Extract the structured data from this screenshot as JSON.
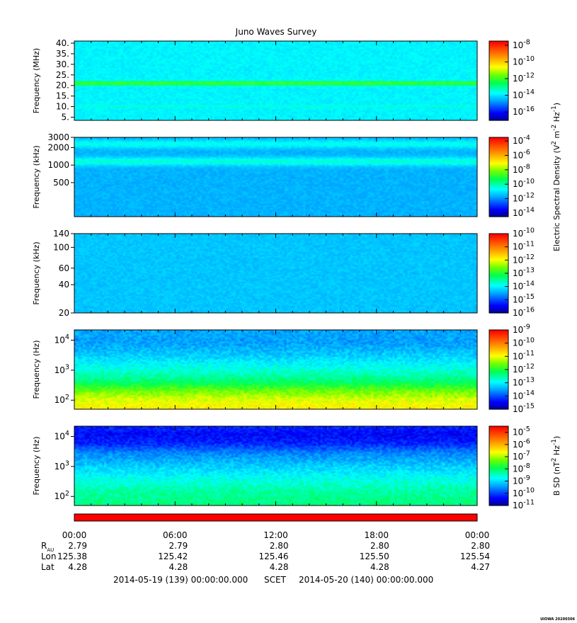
{
  "chart_data": {
    "type": "heatmap",
    "title": "Juno Waves Survey",
    "panels": [
      {
        "ylabel": "Frequency (MHz)",
        "yscale": "linear",
        "ylim": [
          3.5,
          41
        ],
        "yticks": [
          {
            "v": 5,
            "label": "5."
          },
          {
            "v": 10,
            "label": "10."
          },
          {
            "v": 15,
            "label": "15."
          },
          {
            "v": 20,
            "label": "20."
          },
          {
            "v": 25,
            "label": "25."
          },
          {
            "v": 30,
            "label": "30."
          },
          {
            "v": 35,
            "label": "35."
          },
          {
            "v": 40,
            "label": "40."
          }
        ],
        "colorbar": {
          "min_exp": -17,
          "max_exp": -7.5,
          "ticks": [
            -8,
            -10,
            -12,
            -14,
            -16
          ]
        },
        "background_level": 0.34,
        "bands": [
          {
            "center": 21,
            "width": 0.7,
            "level": 0.55
          },
          {
            "center": 10,
            "width": 0.4,
            "level": 0.38
          }
        ]
      },
      {
        "ylabel": "Frequency (kHz)",
        "yscale": "log",
        "ylim": [
          130,
          3000
        ],
        "yticks": [
          {
            "v": 500,
            "label": "500"
          },
          {
            "v": 1000,
            "label": "1000"
          },
          {
            "v": 2000,
            "label": "2000"
          },
          {
            "v": 3000,
            "label": "3000"
          }
        ],
        "colorbar": {
          "min_exp": -14.5,
          "max_exp": -3.5,
          "ticks": [
            -4,
            -6,
            -8,
            -10,
            -12,
            -14
          ]
        },
        "background_level": 0.27,
        "bands": [
          {
            "center": 1150,
            "width": 0.05,
            "level": 0.38
          },
          {
            "center": 2300,
            "width": 0.05,
            "level": 0.36
          }
        ]
      },
      {
        "ylabel": "Frequency (kHz)",
        "yscale": "log",
        "ylim": [
          20,
          140
        ],
        "yticks": [
          {
            "v": 20,
            "label": "20"
          },
          {
            "v": 40,
            "label": "40"
          },
          {
            "v": 60,
            "label": "60"
          },
          {
            "v": 100,
            "label": "100"
          },
          {
            "v": 140,
            "label": "140"
          }
        ],
        "colorbar": {
          "min_exp": -16,
          "max_exp": -10,
          "ticks": [
            -10,
            -11,
            -12,
            -13,
            -14,
            -15,
            -16
          ]
        },
        "background_level": 0.29,
        "bands": []
      },
      {
        "ylabel": "Frequency (Hz)",
        "yscale": "log",
        "ylim": [
          50,
          22000
        ],
        "yticks": [
          {
            "v": 100,
            "label": "10^2"
          },
          {
            "v": 1000,
            "label": "10^3"
          },
          {
            "v": 10000,
            "label": "10^4"
          }
        ],
        "colorbar": {
          "min_exp": -15,
          "max_exp": -9,
          "ticks": [
            -9,
            -10,
            -11,
            -12,
            -13,
            -14,
            -15
          ]
        },
        "profile": [
          [
            50,
            0.7
          ],
          [
            100,
            0.66
          ],
          [
            200,
            0.58
          ],
          [
            400,
            0.46
          ],
          [
            1000,
            0.38
          ],
          [
            3000,
            0.3
          ],
          [
            8000,
            0.25
          ],
          [
            22000,
            0.26
          ]
        ]
      },
      {
        "ylabel": "Frequency (Hz)",
        "yscale": "log",
        "ylim": [
          50,
          22000
        ],
        "yticks": [
          {
            "v": 100,
            "label": "10^2"
          },
          {
            "v": 1000,
            "label": "10^3"
          },
          {
            "v": 10000,
            "label": "10^4"
          }
        ],
        "colorbar": {
          "min_exp": -11,
          "max_exp": -4.5,
          "ticks": [
            -5,
            -6,
            -7,
            -8,
            -9,
            -10,
            -11
          ]
        },
        "profile": [
          [
            50,
            0.45
          ],
          [
            150,
            0.42
          ],
          [
            400,
            0.36
          ],
          [
            1000,
            0.3
          ],
          [
            3000,
            0.22
          ],
          [
            6000,
            0.13
          ],
          [
            12000,
            0.1
          ],
          [
            22000,
            0.14
          ]
        ]
      }
    ],
    "colorbar_labels": {
      "electric": "Electric Spectral Density (V^2 m^-2 Hz^-1)",
      "magnetic": "B SD (nT^2 Hz^-1)"
    },
    "x_ticks": [
      "00:00",
      "06:00",
      "12:00",
      "18:00",
      "00:00"
    ],
    "ephemeris": [
      {
        "label": "R_AU",
        "values": [
          "2.79",
          "2.79",
          "2.80",
          "2.80",
          "2.80"
        ]
      },
      {
        "label": "Lon",
        "values": [
          "125.38",
          "125.42",
          "125.46",
          "125.50",
          "125.54"
        ]
      },
      {
        "label": "Lat",
        "values": [
          "4.28",
          "4.28",
          "4.28",
          "4.28",
          "4.27"
        ]
      }
    ],
    "time_range": {
      "start": "2014-05-19 (139) 00:00:00.000",
      "mid": "SCET",
      "end": "2014-05-20 (140) 00:00:00.000"
    },
    "status_bar_color": "#ff0000",
    "credit": "UIOWA 20200306"
  }
}
